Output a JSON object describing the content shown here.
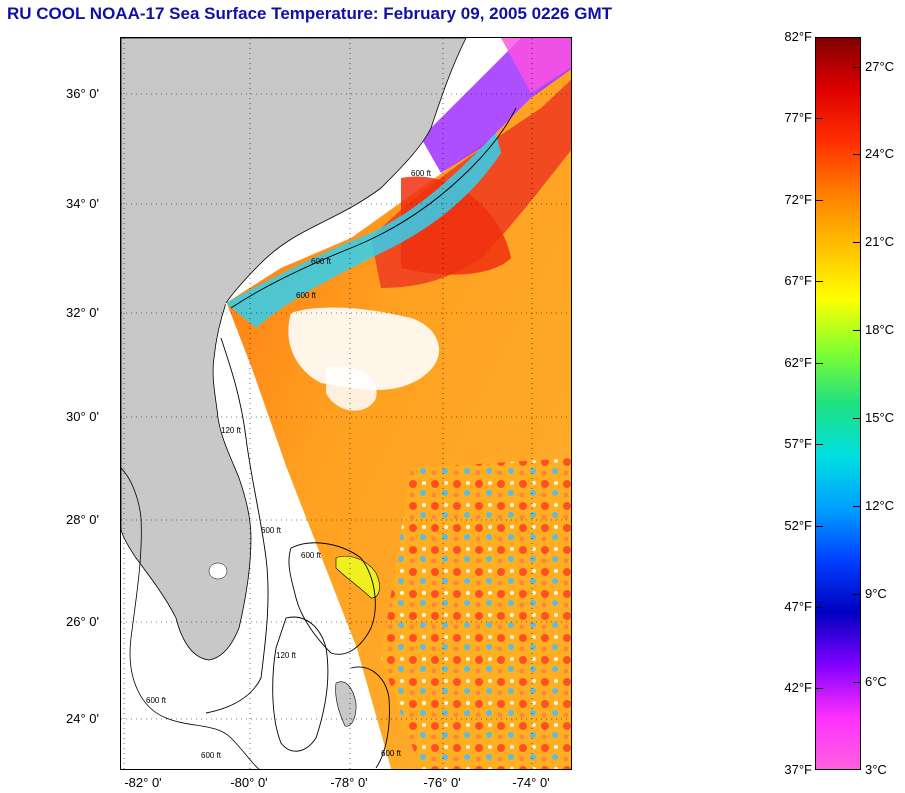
{
  "title": "RU COOL  NOAA-17  Sea Surface Temperature:  February 09, 2005 0226 GMT",
  "map": {
    "lat_labels": [
      "36° 0'",
      "34° 0'",
      "32° 0'",
      "30° 0'",
      "28° 0'",
      "26° 0'",
      "24° 0'"
    ],
    "lon_labels": [
      "-82° 0'",
      "-80° 0'",
      "-78° 0'",
      "-76° 0'",
      "-74° 0'"
    ],
    "contour_labels": [
      "600 ft",
      "600 ft",
      "600 ft",
      "120 ft",
      "600 ft",
      "600 ft",
      "600 ft",
      "120 ft",
      "600 ft",
      "600 ft"
    ],
    "colors": {
      "land": "#c8c8c8",
      "no_data": "#ffffff",
      "gulf_stream": "#f04020",
      "open_ocean": "#f8a020",
      "shelf": "#30d0f0"
    }
  },
  "colorbar": {
    "fahrenheit": [
      "82°F",
      "77°F",
      "72°F",
      "67°F",
      "62°F",
      "57°F",
      "52°F",
      "47°F",
      "42°F",
      "37°F"
    ],
    "celsius": [
      "27°C",
      "24°C",
      "21°C",
      "18°C",
      "15°C",
      "12°C",
      "9°C",
      "6°C",
      "3°C"
    ],
    "range_f": [
      37,
      82
    ],
    "gradient": [
      "#800000",
      "#e00000",
      "#ff3000",
      "#ff8000",
      "#ffc000",
      "#ffff00",
      "#80ff30",
      "#20e080",
      "#00e0e0",
      "#00a0ff",
      "#0040ff",
      "#0000c0",
      "#8000ff",
      "#ff30ff",
      "#ff60e0"
    ]
  }
}
